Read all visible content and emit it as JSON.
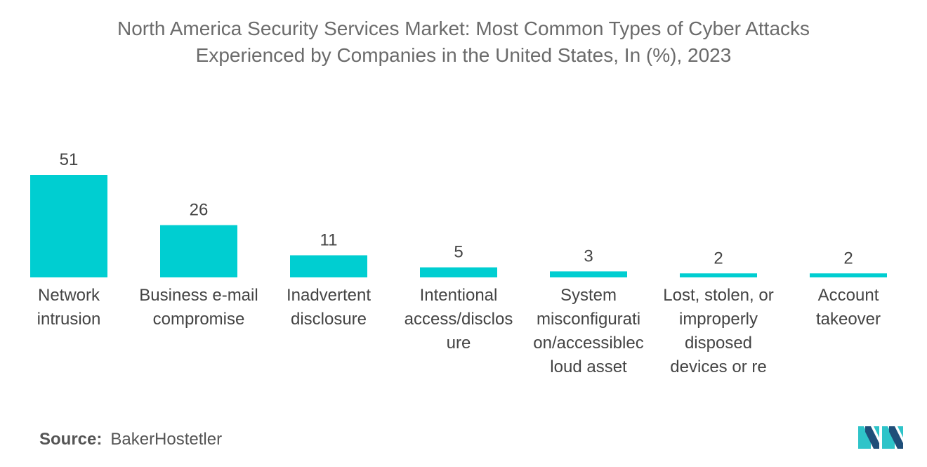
{
  "title": {
    "line1": "North America Security Services Market: Most Common Types of Cyber Attacks",
    "line2": "Experienced by Companies in the United States, In (%), 2023"
  },
  "chart_data": {
    "type": "bar",
    "title": "North America Security Services Market: Most Common Types of Cyber Attacks Experienced by Companies in the United States, In (%), 2023",
    "categories": [
      "Network\nintrusion",
      "Business e-mail\ncompromise",
      "Inadvertent\ndisclosure",
      "Intentional\naccess/disclos\nure",
      "System\nmisconfigurati\non/accessiblec\nloud asset",
      "Lost, stolen, or\nimproperly\ndisposed\ndevices or re",
      "Account\ntakeover"
    ],
    "values": [
      51,
      26,
      11,
      5,
      3,
      2,
      2
    ],
    "xlabel": "",
    "ylabel": "",
    "ylim": [
      0,
      51
    ],
    "grid": false,
    "legend": "none",
    "bar_color": "#00CED1"
  },
  "source": {
    "label": "Source:",
    "value": "BakerHostetler"
  },
  "logo": {
    "icon": "mordor-logo-icon",
    "colors": [
      "#1f4e79",
      "#2ec4c9"
    ]
  }
}
